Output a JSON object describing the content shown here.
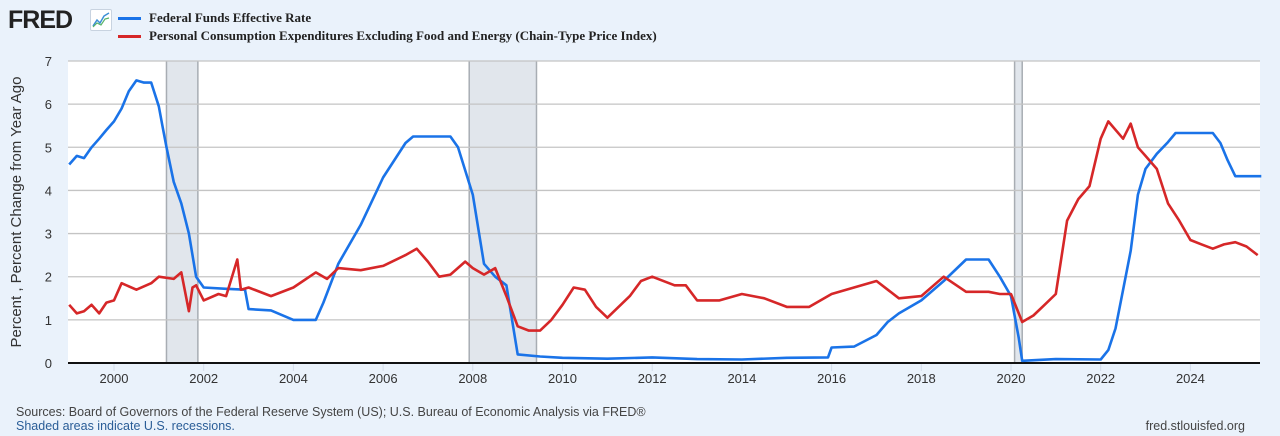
{
  "header": {
    "logo_text": "FRED",
    "logo_icon": "chart-line-icon"
  },
  "footer": {
    "sources": "Sources: Board of Governors of the Federal Reserve System (US); U.S. Bureau of Economic Analysis via FRED®",
    "recession_note": "Shaded areas indicate U.S. recessions.",
    "site": "fred.stlouisfed.org"
  },
  "chart_data": {
    "type": "line",
    "title": "",
    "xlabel": "",
    "ylabel": "Percent , Percent Change from Year Ago",
    "xlim": [
      1999.0,
      2025.58
    ],
    "ylim": [
      0,
      7
    ],
    "grid": true,
    "legend_placement": "top-left",
    "y_ticks": [
      "0",
      "1",
      "2",
      "3",
      "4",
      "5",
      "6",
      "7"
    ],
    "x_ticks": [
      "2000",
      "2002",
      "2004",
      "2006",
      "2008",
      "2010",
      "2012",
      "2014",
      "2016",
      "2018",
      "2020",
      "2022",
      "2024"
    ],
    "recessions": [
      [
        2001.17,
        2001.87
      ],
      [
        2007.92,
        2009.42
      ],
      [
        2020.08,
        2020.25
      ]
    ],
    "series": [
      {
        "name": "Federal Funds Effective Rate",
        "color": "#1a73e8",
        "x": [
          1999.0,
          1999.17,
          1999.33,
          1999.5,
          1999.67,
          1999.83,
          2000.0,
          2000.17,
          2000.33,
          2000.5,
          2000.67,
          2000.83,
          2001.0,
          2001.08,
          2001.17,
          2001.33,
          2001.5,
          2001.67,
          2001.83,
          2002.0,
          2002.5,
          2002.92,
          2003.0,
          2003.5,
          2004.0,
          2004.5,
          2004.67,
          2005.0,
          2005.5,
          2006.0,
          2006.5,
          2006.67,
          2007.0,
          2007.5,
          2007.67,
          2008.0,
          2008.25,
          2008.5,
          2008.75,
          2009.0,
          2009.5,
          2010.0,
          2011.0,
          2012.0,
          2013.0,
          2014.0,
          2015.0,
          2015.92,
          2016.0,
          2016.5,
          2017.0,
          2017.25,
          2017.5,
          2018.0,
          2018.5,
          2019.0,
          2019.5,
          2019.75,
          2020.0,
          2020.17,
          2020.25,
          2021.0,
          2022.0,
          2022.17,
          2022.33,
          2022.5,
          2022.67,
          2022.83,
          2023.0,
          2023.25,
          2023.5,
          2023.67,
          2024.0,
          2024.5,
          2024.67,
          2024.83,
          2025.0,
          2025.58
        ],
        "values": [
          4.6,
          4.8,
          4.75,
          5.0,
          5.2,
          5.4,
          5.6,
          5.9,
          6.3,
          6.55,
          6.5,
          6.5,
          5.95,
          5.5,
          5.0,
          4.2,
          3.7,
          3.0,
          2.0,
          1.75,
          1.72,
          1.7,
          1.25,
          1.22,
          1.0,
          1.0,
          1.4,
          2.3,
          3.2,
          4.3,
          5.1,
          5.25,
          5.25,
          5.25,
          5.0,
          3.9,
          2.3,
          2.0,
          1.8,
          0.2,
          0.15,
          0.12,
          0.1,
          0.13,
          0.09,
          0.08,
          0.12,
          0.13,
          0.36,
          0.38,
          0.65,
          0.95,
          1.15,
          1.45,
          1.9,
          2.4,
          2.4,
          2.0,
          1.55,
          0.6,
          0.05,
          0.09,
          0.08,
          0.3,
          0.8,
          1.7,
          2.6,
          3.9,
          4.5,
          4.85,
          5.12,
          5.33,
          5.33,
          5.33,
          5.1,
          4.7,
          4.33,
          4.33
        ]
      },
      {
        "name": "Personal Consumption Expenditures Excluding Food and Energy (Chain-Type Price Index)",
        "color": "#d62728",
        "x": [
          1999.0,
          1999.17,
          1999.33,
          1999.5,
          1999.67,
          1999.83,
          2000.0,
          2000.17,
          2000.5,
          2000.83,
          2001.0,
          2001.33,
          2001.5,
          2001.67,
          2001.75,
          2001.83,
          2002.0,
          2002.33,
          2002.5,
          2002.75,
          2002.83,
          2003.0,
          2003.5,
          2004.0,
          2004.5,
          2004.75,
          2005.0,
          2005.5,
          2006.0,
          2006.5,
          2006.75,
          2007.0,
          2007.25,
          2007.5,
          2007.83,
          2008.0,
          2008.25,
          2008.5,
          2008.75,
          2009.0,
          2009.25,
          2009.5,
          2009.75,
          2010.0,
          2010.25,
          2010.5,
          2010.75,
          2011.0,
          2011.5,
          2011.75,
          2012.0,
          2012.5,
          2012.75,
          2013.0,
          2013.5,
          2014.0,
          2014.5,
          2015.0,
          2015.5,
          2016.0,
          2016.5,
          2017.0,
          2017.5,
          2018.0,
          2018.5,
          2019.0,
          2019.5,
          2019.75,
          2020.0,
          2020.25,
          2020.5,
          2020.75,
          2021.0,
          2021.25,
          2021.5,
          2021.75,
          2022.0,
          2022.17,
          2022.5,
          2022.67,
          2022.83,
          2023.0,
          2023.25,
          2023.5,
          2023.75,
          2024.0,
          2024.25,
          2024.5,
          2024.75,
          2025.0,
          2025.25,
          2025.5
        ],
        "values": [
          1.35,
          1.15,
          1.2,
          1.35,
          1.15,
          1.4,
          1.45,
          1.85,
          1.7,
          1.85,
          2.0,
          1.95,
          2.1,
          1.2,
          1.75,
          1.8,
          1.45,
          1.6,
          1.55,
          2.4,
          1.7,
          1.75,
          1.55,
          1.75,
          2.1,
          1.95,
          2.2,
          2.15,
          2.25,
          2.5,
          2.65,
          2.35,
          2.0,
          2.05,
          2.35,
          2.2,
          2.05,
          2.2,
          1.55,
          0.85,
          0.75,
          0.75,
          1.0,
          1.35,
          1.75,
          1.7,
          1.3,
          1.05,
          1.55,
          1.9,
          2.0,
          1.8,
          1.8,
          1.45,
          1.45,
          1.6,
          1.5,
          1.3,
          1.3,
          1.6,
          1.75,
          1.9,
          1.5,
          1.55,
          2.0,
          1.65,
          1.65,
          1.6,
          1.6,
          0.95,
          1.1,
          1.35,
          1.6,
          3.3,
          3.8,
          4.1,
          5.2,
          5.6,
          5.2,
          5.55,
          5.0,
          4.8,
          4.5,
          3.7,
          3.3,
          2.85,
          2.75,
          2.65,
          2.75,
          2.8,
          2.7,
          2.5
        ]
      }
    ]
  }
}
